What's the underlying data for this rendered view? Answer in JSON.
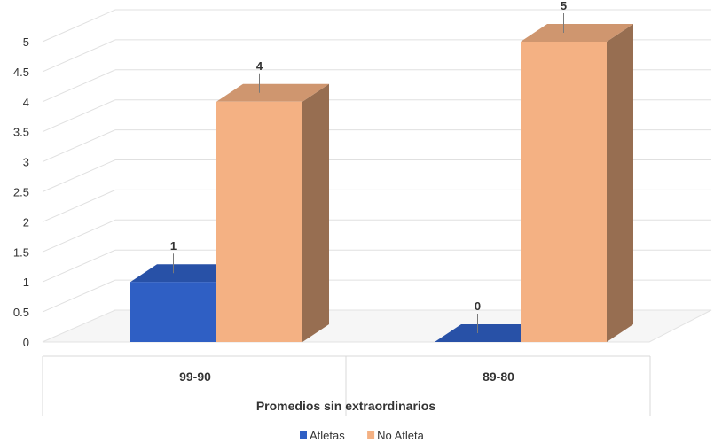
{
  "chart_data": {
    "type": "bar",
    "categories": [
      "99-90",
      "89-80"
    ],
    "series": [
      {
        "name": "Atletas",
        "values": [
          1,
          0
        ],
        "color": "#2f5fc4"
      },
      {
        "name": "No Atleta",
        "values": [
          4,
          5
        ],
        "color": "#f4b183"
      }
    ],
    "xlabel": "Promedios sin extraordinarios",
    "ylabel": "",
    "ylim": [
      0,
      5
    ],
    "yticks": [
      "0",
      "0.5",
      "1",
      "1.5",
      "2",
      "2.5",
      "3",
      "3.5",
      "4",
      "4.5",
      "5"
    ],
    "grid": true,
    "legend_position": "bottom",
    "style": "3d-column"
  }
}
